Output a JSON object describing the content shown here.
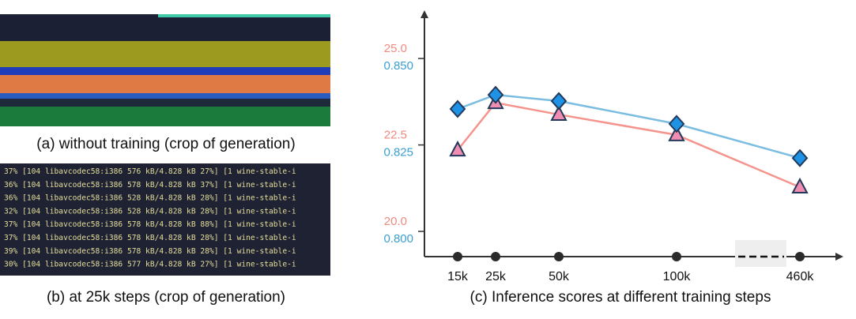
{
  "panel_a": {
    "caption": "(a) without training (crop of generation)"
  },
  "panel_b": {
    "lines": [
      "37% [104 libavcodec58:i386 576 kB/4.828 kB 27%] [1 wine-stable-i",
      "36% [104 libavcodec58:i386 578 kB/4.828 kB 37%] [1 wine-stable-i",
      "36% [104 libavcodec58:i386 528 kB/4.828 kB 28%] [1 wine-stable-i",
      "32% [104 libavcodec58:i386 528 kB/4.828 kB 28%] [1 wine-stable-i",
      "37% [104 libavcodec58:i386 578 kB/4.828 kB 88%] [1 wine-stable-i",
      "37% [104 libavcodec58:i386 578 kB/4.828 kB 28%] [1 wine-stable-i",
      "39% [104 libavcodec58:i386 578 kB/4.828 kB 28%] [1 wine-stable-i",
      "30% [104 libavcodec58:i386 577 kB/4.828 kB 27%] [1 wine-stable-i"
    ],
    "caption": "(b) at 25k steps (crop of generation)"
  },
  "chart_data": {
    "type": "line",
    "caption": "(c) Inference scores at different training steps",
    "categories": [
      "15k",
      "25k",
      "50k",
      "100k",
      "460k"
    ],
    "series": [
      {
        "color": "#f4948c",
        "marker_color": "#f18db0",
        "marker": "triangle",
        "values": [
          22.35,
          23.72,
          23.38,
          22.79,
          21.28
        ]
      },
      {
        "color": "#7bbde0",
        "marker_color": "#1e93e6",
        "marker": "diamond",
        "axis": "y2",
        "values": [
          0.8354,
          0.8395,
          0.8377,
          0.8311,
          0.8212
        ]
      }
    ],
    "ylim": [
      19.27,
      26.35
    ],
    "yticks": [
      {
        "value": 20,
        "label": "20.0"
      },
      {
        "value": 22.5,
        "label": "22.5"
      },
      {
        "value": 25,
        "label": "25.0"
      }
    ],
    "y2lim": [
      0.7927,
      0.8635
    ],
    "y2ticks": [
      {
        "value": 0.8,
        "label": "0.800"
      },
      {
        "value": 0.825,
        "label": "0.825"
      },
      {
        "value": 0.85,
        "label": "0.850"
      }
    ],
    "ytick_color": "#f08a80",
    "y2tick_color": "#3a9fd0",
    "axis_break": true
  }
}
